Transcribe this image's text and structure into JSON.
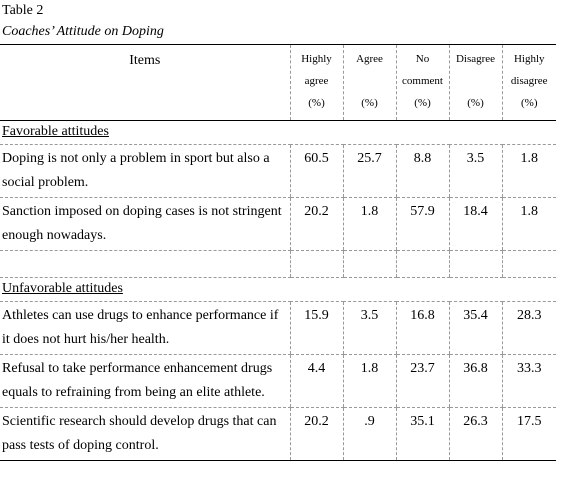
{
  "table": {
    "label": "Table 2",
    "title": "Coaches’ Attitude on Doping",
    "headers": {
      "items": "Items",
      "columns": [
        {
          "line1": "Highly",
          "line2": "agree",
          "line3": "(%)"
        },
        {
          "line1": "Agree",
          "line2": "",
          "line3": "(%)"
        },
        {
          "line1": "No",
          "line2": "comment",
          "line3": "(%)"
        },
        {
          "line1": "Disagree",
          "line2": "",
          "line3": "(%)"
        },
        {
          "line1": "Highly",
          "line2": "disagree",
          "line3": "(%)"
        }
      ]
    },
    "sections": [
      {
        "title": "Favorable attitudes",
        "rows": [
          {
            "item": "Doping is not only a problem in sport but also a social problem.",
            "values": [
              "60.5",
              "25.7",
              "8.8",
              "3.5",
              "1.8"
            ]
          },
          {
            "item": "Sanction imposed on doping cases is not stringent enough nowadays.",
            "values": [
              "20.2",
              "1.8",
              "57.9",
              "18.4",
              "1.8"
            ]
          }
        ]
      },
      {
        "title": "Unfavorable attitudes",
        "rows": [
          {
            "item": "Athletes can use drugs to enhance performance if it does not hurt his/her health.",
            "values": [
              "15.9",
              "3.5",
              "16.8",
              "35.4",
              "28.3"
            ]
          },
          {
            "item": "Refusal to take performance enhancement drugs equals to refraining from being an elite athlete.",
            "values": [
              "4.4",
              "1.8",
              "23.7",
              "36.8",
              "33.3"
            ]
          },
          {
            "item": "Scientific research should develop drugs that can pass tests of doping control.",
            "values": [
              "20.2",
              ".9",
              "35.1",
              "26.3",
              "17.5"
            ]
          }
        ]
      }
    ]
  }
}
